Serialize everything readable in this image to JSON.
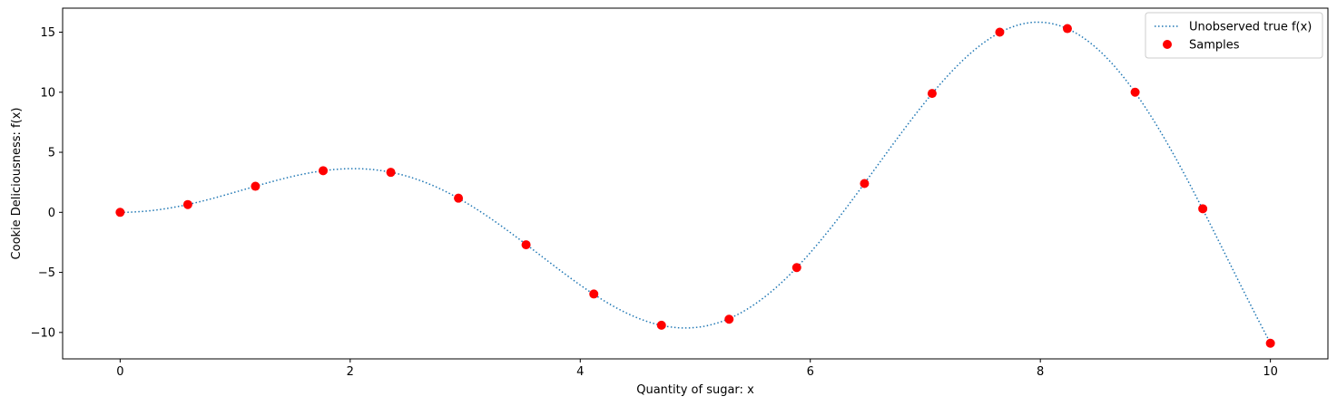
{
  "chart_data": {
    "type": "scatter",
    "title": "",
    "xlabel": "Quantity of sugar: x",
    "ylabel": "Cookie Deliciousness: f(x)",
    "xlim": [
      -0.5,
      10.5
    ],
    "ylim": [
      -12.2,
      17.0
    ],
    "xticks": [
      0,
      2,
      4,
      6,
      8,
      10
    ],
    "yticks": [
      -10,
      -5,
      0,
      5,
      10,
      15
    ],
    "grid": false,
    "legend_position": "top-right",
    "series": [
      {
        "name": "Unobserved true f(x)",
        "kind": "line",
        "style": "dotted",
        "color": "#1f77b4",
        "function": "x*sin(x)*2"
      },
      {
        "name": "Samples",
        "kind": "scatter",
        "color": "#ff0000",
        "x": [
          0,
          0.588,
          1.176,
          1.765,
          2.353,
          2.941,
          3.529,
          4.118,
          4.706,
          5.294,
          5.882,
          6.471,
          7.059,
          7.647,
          8.235,
          8.824,
          9.412,
          10.0
        ],
        "y": [
          0.0,
          0.65,
          2.17,
          3.47,
          3.33,
          1.18,
          -2.7,
          -6.8,
          -9.4,
          -8.9,
          -4.6,
          2.4,
          9.9,
          15.0,
          15.3,
          10.0,
          0.3,
          -10.9
        ]
      }
    ]
  }
}
